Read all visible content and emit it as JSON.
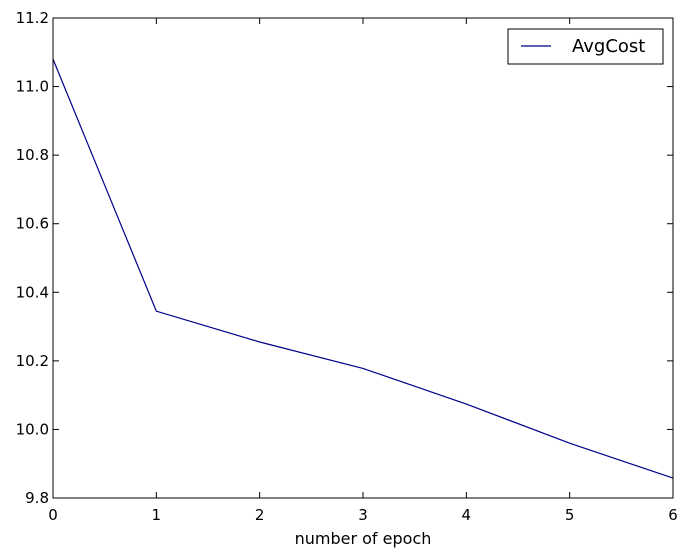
{
  "chart_data": {
    "type": "line",
    "title": "",
    "xlabel": "number of epoch",
    "ylabel": "",
    "xlim": [
      0,
      6
    ],
    "ylim": [
      9.8,
      11.2
    ],
    "x_ticks": [
      "0",
      "1",
      "2",
      "3",
      "4",
      "5",
      "6"
    ],
    "y_ticks": [
      "9.8",
      "10.0",
      "10.2",
      "10.4",
      "10.6",
      "10.8",
      "11.0",
      "11.2"
    ],
    "grid": false,
    "legend_position": "top-right",
    "series": [
      {
        "name": "AvgCost",
        "color": "#00008b",
        "x": [
          0,
          1,
          2,
          3,
          4,
          5,
          6
        ],
        "y": [
          11.08,
          10.345,
          10.255,
          10.178,
          10.074,
          9.96,
          9.858
        ]
      }
    ]
  }
}
